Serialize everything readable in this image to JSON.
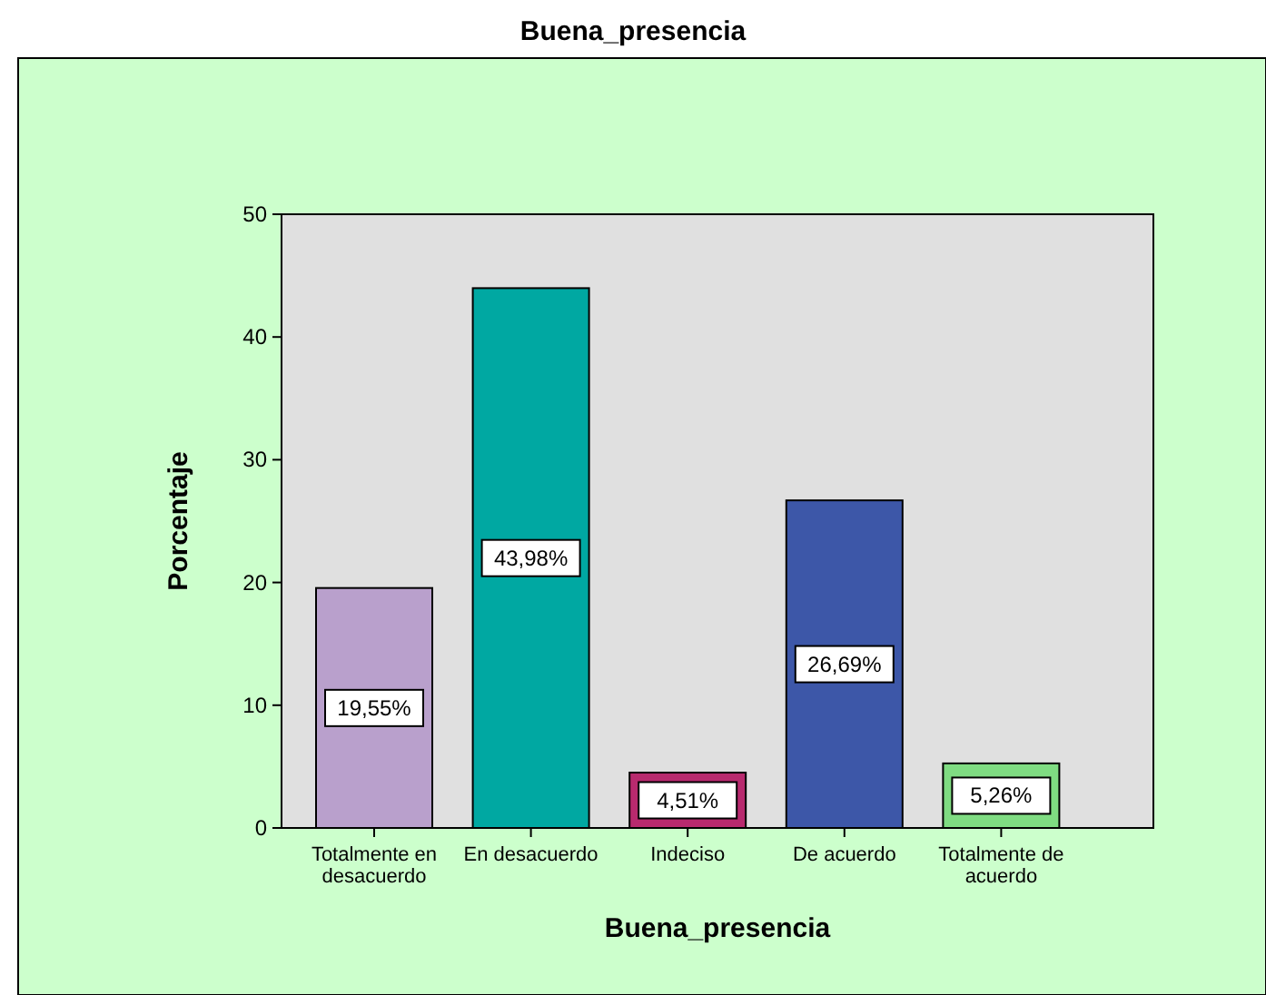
{
  "chart_data": {
    "type": "bar",
    "title": "Buena_presencia",
    "xlabel": "Buena_presencia",
    "ylabel": "Porcentaje",
    "categories": [
      "Totalmente en desacuerdo",
      "En desacuerdo",
      "Indeciso",
      "De acuerdo",
      "Totalmente de acuerdo"
    ],
    "values": [
      19.55,
      43.98,
      4.51,
      26.69,
      5.26
    ],
    "colors": [
      "#b9a0cc",
      "#00a8a2",
      "#b82a6e",
      "#3d57a8",
      "#7fdc82"
    ],
    "value_labels": [
      "19,55%",
      "43,98%",
      "4,51%",
      "26,69%",
      "5,26%"
    ],
    "ylim": [
      0,
      50
    ],
    "yticks": [
      0,
      10,
      20,
      30,
      40,
      50
    ],
    "grid": false
  }
}
